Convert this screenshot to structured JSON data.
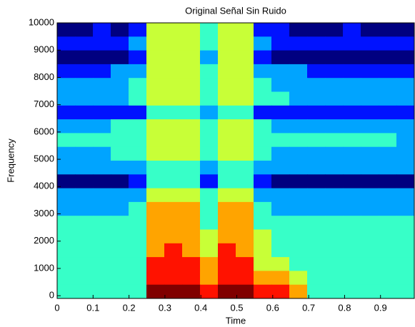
{
  "chart_data": {
    "type": "heatmap",
    "title": "Original Señal Sin Ruido",
    "x_label": "Time",
    "y_label": "Frequency",
    "colormap": "jet",
    "xlim": [
      0,
      0.994
    ],
    "ylim": [
      -100,
      10000
    ],
    "xticks": [
      0,
      0.1,
      0.2,
      0.3,
      0.4,
      0.5,
      0.6,
      0.7,
      0.8,
      0.9
    ],
    "yticks": [
      0,
      1000,
      2000,
      3000,
      4000,
      5000,
      6000,
      7000,
      8000,
      9000,
      10000
    ],
    "z": [
      [
        2,
        2,
        3,
        2,
        3,
        6,
        6,
        6,
        5,
        6,
        6,
        3,
        3,
        2,
        2,
        2,
        3,
        2,
        2,
        2
      ],
      [
        3,
        3,
        3,
        3,
        4,
        6,
        6,
        6,
        5,
        6,
        6,
        4,
        3,
        3,
        3,
        3,
        3,
        3,
        3,
        3
      ],
      [
        2,
        2,
        2,
        2,
        3,
        6,
        6,
        6,
        4,
        6,
        6,
        3,
        2,
        2,
        2,
        2,
        2,
        2,
        2,
        2
      ],
      [
        3,
        3,
        3,
        4,
        4,
        6,
        6,
        6,
        5,
        6,
        6,
        4,
        4,
        4,
        3,
        3,
        3,
        3,
        3,
        3
      ],
      [
        4,
        4,
        4,
        4,
        5,
        6,
        6,
        6,
        5,
        6,
        6,
        5,
        4,
        4,
        4,
        4,
        4,
        4,
        4,
        4
      ],
      [
        4,
        4,
        4,
        4,
        5,
        6,
        6,
        6,
        5,
        6,
        6,
        5,
        5,
        4,
        4,
        4,
        4,
        4,
        4,
        4
      ],
      [
        3,
        3,
        3,
        3,
        3,
        5,
        5,
        5,
        4,
        5,
        5,
        3,
        3,
        3,
        3,
        3,
        3,
        3,
        3,
        3
      ],
      [
        4,
        4,
        4,
        5,
        5,
        6,
        6,
        6,
        5,
        6,
        6,
        5,
        4,
        4,
        4,
        4,
        4,
        4,
        4,
        4
      ],
      [
        5,
        5,
        5,
        5,
        5,
        6,
        6,
        6,
        5,
        6,
        6,
        5,
        5,
        5,
        5,
        5,
        5,
        5,
        5,
        4
      ],
      [
        4,
        4,
        4,
        5,
        5,
        6,
        6,
        6,
        5,
        6,
        6,
        5,
        4,
        4,
        4,
        4,
        4,
        4,
        4,
        4
      ],
      [
        4,
        4,
        4,
        4,
        4,
        5,
        5,
        5,
        4,
        5,
        5,
        4,
        4,
        4,
        4,
        4,
        4,
        4,
        4,
        4
      ],
      [
        2,
        2,
        2,
        2,
        3,
        5,
        5,
        5,
        3,
        5,
        5,
        3,
        2,
        2,
        2,
        2,
        2,
        2,
        2,
        2
      ],
      [
        4,
        4,
        4,
        4,
        4,
        6,
        6,
        6,
        5,
        6,
        6,
        4,
        4,
        4,
        4,
        4,
        4,
        4,
        4,
        4
      ],
      [
        4,
        4,
        4,
        4,
        5,
        7,
        7,
        7,
        5,
        7,
        7,
        5,
        4,
        4,
        4,
        4,
        4,
        4,
        4,
        4
      ],
      [
        5,
        5,
        5,
        5,
        5,
        7,
        7,
        7,
        5,
        7,
        7,
        5,
        5,
        5,
        5,
        5,
        5,
        5,
        5,
        5
      ],
      [
        5,
        5,
        5,
        5,
        5,
        7,
        7,
        7,
        6,
        7,
        7,
        6,
        5,
        5,
        5,
        5,
        5,
        5,
        5,
        5
      ],
      [
        5,
        5,
        5,
        5,
        5,
        7,
        8,
        7,
        6,
        8,
        7,
        6,
        5,
        5,
        5,
        5,
        5,
        5,
        5,
        5
      ],
      [
        5,
        5,
        5,
        5,
        5,
        8,
        8,
        8,
        7,
        8,
        8,
        6,
        6,
        5,
        5,
        5,
        5,
        5,
        5,
        5
      ],
      [
        5,
        5,
        5,
        5,
        5,
        8,
        8,
        8,
        7,
        8,
        8,
        7,
        7,
        6,
        5,
        5,
        5,
        5,
        5,
        5
      ],
      [
        5,
        5,
        5,
        5,
        5,
        9,
        9,
        9,
        8,
        9,
        9,
        8,
        8,
        7,
        5,
        5,
        5,
        5,
        5,
        5
      ]
    ]
  }
}
